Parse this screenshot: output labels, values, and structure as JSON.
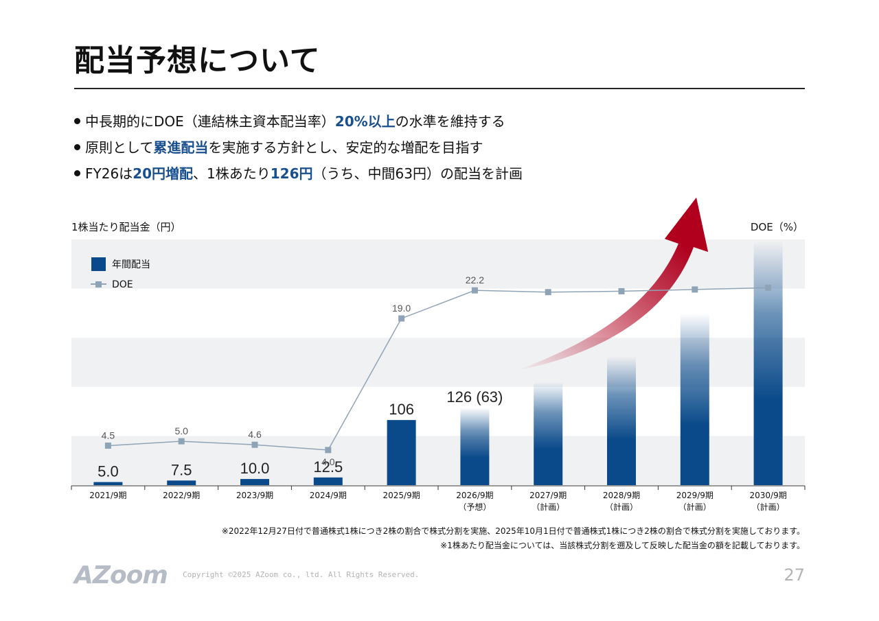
{
  "title": "配当予想について",
  "bullets": [
    {
      "pre": "中長期的にDOE（連結株主資本配当率）",
      "em": "20%以上",
      "mid": "の水準を維持する",
      "em2": "",
      "post": ""
    },
    {
      "pre": "原則として",
      "em": "累進配当",
      "mid": "を実施する方針とし、安定的な増配を目指す",
      "em2": "",
      "post": ""
    },
    {
      "pre": "FY26は",
      "em": "20円増配",
      "mid": "、1株あたり",
      "em2": "126円",
      "post": "（うち、中間63円）の配当を計画"
    }
  ],
  "axis_titles": {
    "left": "1株当たり配当金（円）",
    "right": "DOE（%）"
  },
  "chart_data": {
    "type": "bar",
    "categories": [
      "2021/9期",
      "2022/9期",
      "2023/9期",
      "2024/9期",
      "2025/9期",
      "2026/9期",
      "2027/9期",
      "2028/9期",
      "2029/9期",
      "2030/9期"
    ],
    "category_sublabels": [
      "",
      "",
      "",
      "",
      "",
      "（予想）",
      "（計画）",
      "（計画）",
      "（計画）",
      "（計画）"
    ],
    "series": [
      {
        "name": "年間配当",
        "type": "bar",
        "values": [
          5.0,
          7.5,
          10.0,
          12.5,
          106,
          126,
          168,
          210,
          280,
          400
        ],
        "labels": [
          "5.0",
          "7.5",
          "10.0",
          "12.5",
          "106",
          "126 (63)",
          "",
          "",
          "",
          ""
        ],
        "styles": [
          "solid",
          "solid",
          "solid",
          "solid",
          "solid",
          "gradient",
          "gradient",
          "gradient",
          "gradient",
          "gradient"
        ],
        "color": "#0a4a8a"
      },
      {
        "name": "DOE",
        "type": "line",
        "axis": "right",
        "values": [
          4.5,
          5.0,
          4.6,
          4.0,
          19.0,
          22.2,
          22.0,
          22.1,
          22.3,
          22.5
        ],
        "labels": [
          "4.5",
          "5.0",
          "4.6",
          "4.0",
          "19.0",
          "22.2",
          "",
          "",
          "",
          ""
        ],
        "color": "#8fa3b6"
      }
    ],
    "ylim": [
      0,
      400
    ],
    "y2lim": [
      0,
      28
    ],
    "grid": "alternating bands",
    "legend": "top-left",
    "arrow_color": "#b0001e"
  },
  "notes": [
    "※2022年12月27日付で普通株式1株につき2株の割合で株式分割を実施、2025年10月1日付で普通株式1株につき2株の割合で株式分割を実施しております。",
    "※1株あたり配当金については、当該株式分割を遡及して反映した配当金の額を記載しております。"
  ],
  "footer": {
    "logo": "AZoom",
    "copyright": "Copyright ©2025 AZoom co., ltd. All Rights Reserved.",
    "page": "27"
  }
}
